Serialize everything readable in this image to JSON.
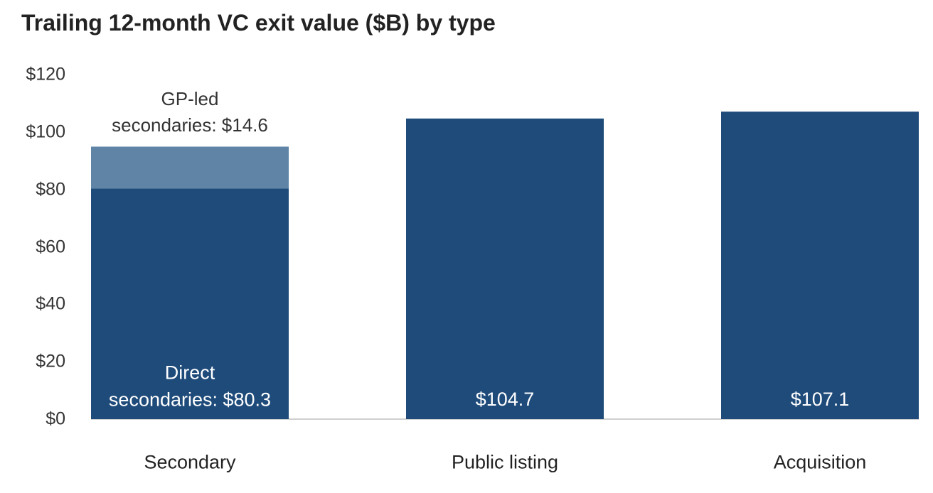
{
  "chart_data": {
    "type": "stacked_bar",
    "title": "Trailing 12-month VC exit value ($B) by type",
    "categories": [
      "Secondary",
      "Public listing",
      "Acquisition"
    ],
    "series": [
      {
        "color": "#1f4b7a",
        "values": [
          80.3,
          104.7,
          107.1
        ],
        "value_labels": [
          "Direct\nsecondaries: $80.3",
          "$104.7",
          "$107.1"
        ]
      },
      {
        "color": "#5f84a6",
        "values": [
          14.6,
          null,
          null
        ],
        "value_labels": [
          "GP-led\nsecondaries: $14.6",
          null,
          null
        ]
      }
    ],
    "ylim": [
      0,
      120
    ],
    "yticks": [
      {
        "value": 0,
        "label": "$0"
      },
      {
        "value": 20,
        "label": "$20"
      },
      {
        "value": 40,
        "label": "$40"
      },
      {
        "value": 60,
        "label": "$60"
      },
      {
        "value": 80,
        "label": "$80"
      },
      {
        "value": 100,
        "label": "$100"
      },
      {
        "value": 120,
        "label": "$120"
      }
    ],
    "grid": false
  }
}
